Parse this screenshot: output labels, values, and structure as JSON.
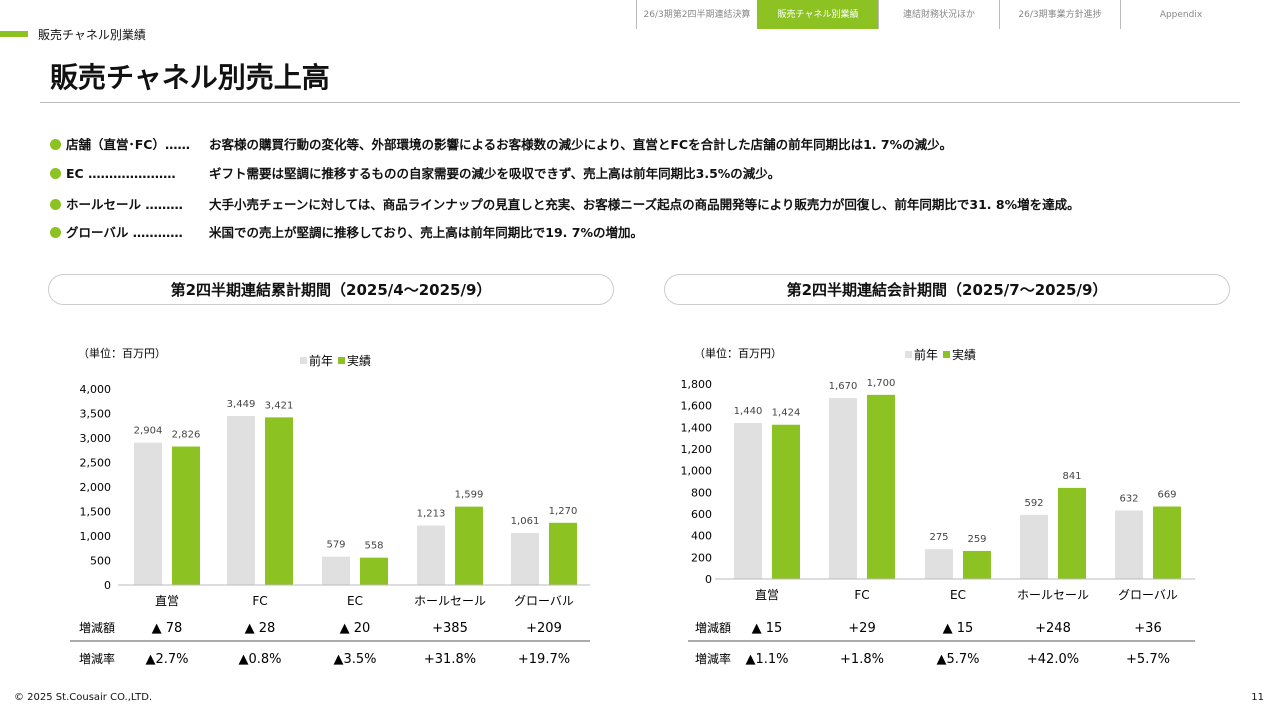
{
  "nav": {
    "tabs": [
      {
        "label": "26/3期第2四半期連結決算"
      },
      {
        "label": "販売チャネル別業績",
        "active": true
      },
      {
        "label": "連結財務状況ほか"
      },
      {
        "label": "26/3期事業方針進捗"
      },
      {
        "label": "Appendix"
      }
    ]
  },
  "section_label": "販売チャネル別業績",
  "page_title": "販売チャネル別売上高",
  "bullets": [
    {
      "label": "店舗（直営･FC）……",
      "text": "お客様の購買行動の変化等、外部環境の影響によるお客様数の減少により、直営とFCを合計した店舗の前年同期比は1. 7%の減少。"
    },
    {
      "label": "EC …………………",
      "text": "ギフト需要は堅調に推移するものの自家需要の減少を吸収できず、売上高は前年同期比3.5%の減少。"
    },
    {
      "label": "ホールセール ………",
      "text": "大手小売チェーンに対しては、商品ラインナップの見直しと充実、お客様ニーズ起点の商品開発等により販売力が回復し、前年同期比で31. 8%増を達成。"
    },
    {
      "label": "グローバル …………",
      "text": "米国での売上が堅調に推移しており、売上高は前年同期比で19. 7%の増加。"
    }
  ],
  "colors": {
    "accent": "#8cc221",
    "prior": "#e0e0e0"
  },
  "chart_data": [
    {
      "type": "bar",
      "title": "第2四半期連結累計期間（2025/4～2025/9）",
      "unit": "（単位：百万円）",
      "categories": [
        "直営",
        "FC",
        "EC",
        "ホールセール",
        "グローバル"
      ],
      "series": [
        {
          "name": "前年",
          "values": [
            2904,
            3449,
            579,
            1213,
            1061
          ]
        },
        {
          "name": "実績",
          "values": [
            2826,
            3421,
            558,
            1599,
            1270
          ]
        }
      ],
      "ylim": [
        0,
        4000
      ],
      "yticks": [
        "0",
        "500",
        "1,000",
        "1,500",
        "2,000",
        "2,500",
        "3,000",
        "3,500",
        "4,000"
      ],
      "ytick_values": [
        0,
        500,
        1000,
        1500,
        2000,
        2500,
        3000,
        3500,
        4000
      ],
      "rows": [
        {
          "label": "増減額",
          "values": [
            "▲ 78",
            "▲ 28",
            "▲ 20",
            "+385",
            "+209"
          ]
        },
        {
          "label": "増減率",
          "values": [
            "▲2.7%",
            "▲0.8%",
            "▲3.5%",
            "+31.8%",
            "+19.7%"
          ]
        }
      ]
    },
    {
      "type": "bar",
      "title": "第2四半期連結会計期間（2025/7～2025/9）",
      "unit": "（単位：百万円）",
      "categories": [
        "直営",
        "FC",
        "EC",
        "ホールセール",
        "グローバル"
      ],
      "series": [
        {
          "name": "前年",
          "values": [
            1440,
            1670,
            275,
            592,
            632
          ]
        },
        {
          "name": "実績",
          "values": [
            1424,
            1700,
            259,
            841,
            669
          ]
        }
      ],
      "ylim": [
        0,
        1800
      ],
      "yticks": [
        "0",
        "200",
        "400",
        "600",
        "800",
        "1,000",
        "1,200",
        "1,400",
        "1,600",
        "1,800"
      ],
      "ytick_values": [
        0,
        200,
        400,
        600,
        800,
        1000,
        1200,
        1400,
        1600,
        1800
      ],
      "rows": [
        {
          "label": "増減額",
          "values": [
            "▲ 15",
            "+29",
            "▲ 15",
            "+248",
            "+36"
          ]
        },
        {
          "label": "増減率",
          "values": [
            "▲1.1%",
            "+1.8%",
            "▲5.7%",
            "+42.0%",
            "+5.7%"
          ]
        }
      ]
    }
  ],
  "footer": {
    "copyright": "© 2025 St.Cousair CO.,LTD.",
    "page": "11"
  }
}
